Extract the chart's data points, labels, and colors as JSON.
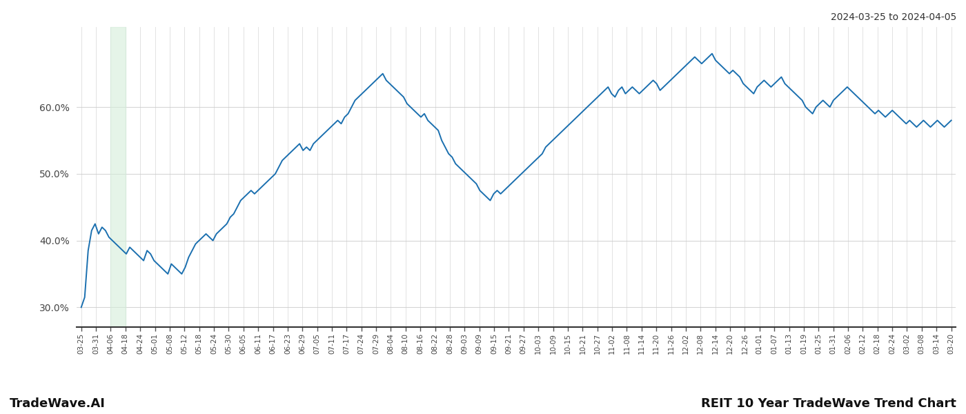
{
  "title_top_right": "2024-03-25 to 2024-04-05",
  "title_bottom_left": "TradeWave.AI",
  "title_bottom_right": "REIT 10 Year TradeWave Trend Chart",
  "line_color": "#1a6faf",
  "line_width": 1.4,
  "shaded_region_color": "#d4edda",
  "shaded_region_alpha": 0.6,
  "ylim": [
    27.0,
    72.0
  ],
  "yticks": [
    30.0,
    40.0,
    50.0,
    60.0
  ],
  "ytick_labels": [
    "30.0%",
    "40.0%",
    "50.0%",
    "60.0%"
  ],
  "background_color": "#ffffff",
  "grid_color": "#cccccc",
  "x_labels": [
    "03-25",
    "03-31",
    "04-06",
    "04-18",
    "04-24",
    "05-01",
    "05-08",
    "05-12",
    "05-18",
    "05-24",
    "05-30",
    "06-05",
    "06-11",
    "06-17",
    "06-23",
    "06-29",
    "07-05",
    "07-11",
    "07-17",
    "07-24",
    "07-29",
    "08-04",
    "08-10",
    "08-16",
    "08-22",
    "08-28",
    "09-03",
    "09-09",
    "09-15",
    "09-21",
    "09-27",
    "10-03",
    "10-09",
    "10-15",
    "10-21",
    "10-27",
    "11-02",
    "11-08",
    "11-14",
    "11-20",
    "11-26",
    "12-02",
    "12-08",
    "12-14",
    "12-20",
    "12-26",
    "01-01",
    "01-07",
    "01-13",
    "01-19",
    "01-25",
    "01-31",
    "02-06",
    "02-12",
    "02-18",
    "02-24",
    "03-02",
    "03-08",
    "03-14",
    "03-20"
  ],
  "y_values": [
    30.0,
    31.5,
    38.5,
    41.5,
    42.5,
    41.0,
    42.0,
    41.5,
    40.5,
    40.0,
    39.5,
    39.0,
    38.5,
    38.0,
    39.0,
    38.5,
    38.0,
    37.5,
    37.0,
    38.5,
    38.0,
    37.0,
    36.5,
    36.0,
    35.5,
    35.0,
    36.5,
    36.0,
    35.5,
    35.0,
    36.0,
    37.5,
    38.5,
    39.5,
    40.0,
    40.5,
    41.0,
    40.5,
    40.0,
    41.0,
    41.5,
    42.0,
    42.5,
    43.5,
    44.0,
    45.0,
    46.0,
    46.5,
    47.0,
    47.5,
    47.0,
    47.5,
    48.0,
    48.5,
    49.0,
    49.5,
    50.0,
    51.0,
    52.0,
    52.5,
    53.0,
    53.5,
    54.0,
    54.5,
    53.5,
    54.0,
    53.5,
    54.5,
    55.0,
    55.5,
    56.0,
    56.5,
    57.0,
    57.5,
    58.0,
    57.5,
    58.5,
    59.0,
    60.0,
    61.0,
    61.5,
    62.0,
    62.5,
    63.0,
    63.5,
    64.0,
    64.5,
    65.0,
    64.0,
    63.5,
    63.0,
    62.5,
    62.0,
    61.5,
    60.5,
    60.0,
    59.5,
    59.0,
    58.5,
    59.0,
    58.0,
    57.5,
    57.0,
    56.5,
    55.0,
    54.0,
    53.0,
    52.5,
    51.5,
    51.0,
    50.5,
    50.0,
    49.5,
    49.0,
    48.5,
    47.5,
    47.0,
    46.5,
    46.0,
    47.0,
    47.5,
    47.0,
    47.5,
    48.0,
    48.5,
    49.0,
    49.5,
    50.0,
    50.5,
    51.0,
    51.5,
    52.0,
    52.5,
    53.0,
    54.0,
    54.5,
    55.0,
    55.5,
    56.0,
    56.5,
    57.0,
    57.5,
    58.0,
    58.5,
    59.0,
    59.5,
    60.0,
    60.5,
    61.0,
    61.5,
    62.0,
    62.5,
    63.0,
    62.0,
    61.5,
    62.5,
    63.0,
    62.0,
    62.5,
    63.0,
    62.5,
    62.0,
    62.5,
    63.0,
    63.5,
    64.0,
    63.5,
    62.5,
    63.0,
    63.5,
    64.0,
    64.5,
    65.0,
    65.5,
    66.0,
    66.5,
    67.0,
    67.5,
    67.0,
    66.5,
    67.0,
    67.5,
    68.0,
    67.0,
    66.5,
    66.0,
    65.5,
    65.0,
    65.5,
    65.0,
    64.5,
    63.5,
    63.0,
    62.5,
    62.0,
    63.0,
    63.5,
    64.0,
    63.5,
    63.0,
    63.5,
    64.0,
    64.5,
    63.5,
    63.0,
    62.5,
    62.0,
    61.5,
    61.0,
    60.0,
    59.5,
    59.0,
    60.0,
    60.5,
    61.0,
    60.5,
    60.0,
    61.0,
    61.5,
    62.0,
    62.5,
    63.0,
    62.5,
    62.0,
    61.5,
    61.0,
    60.5,
    60.0,
    59.5,
    59.0,
    59.5,
    59.0,
    58.5,
    59.0,
    59.5,
    59.0,
    58.5,
    58.0,
    57.5,
    58.0,
    57.5,
    57.0,
    57.5,
    58.0,
    57.5,
    57.0,
    57.5,
    58.0,
    57.5,
    57.0,
    57.5,
    58.0
  ],
  "shaded_x_start_label": "04-06",
  "shaded_x_end_label": "04-18"
}
